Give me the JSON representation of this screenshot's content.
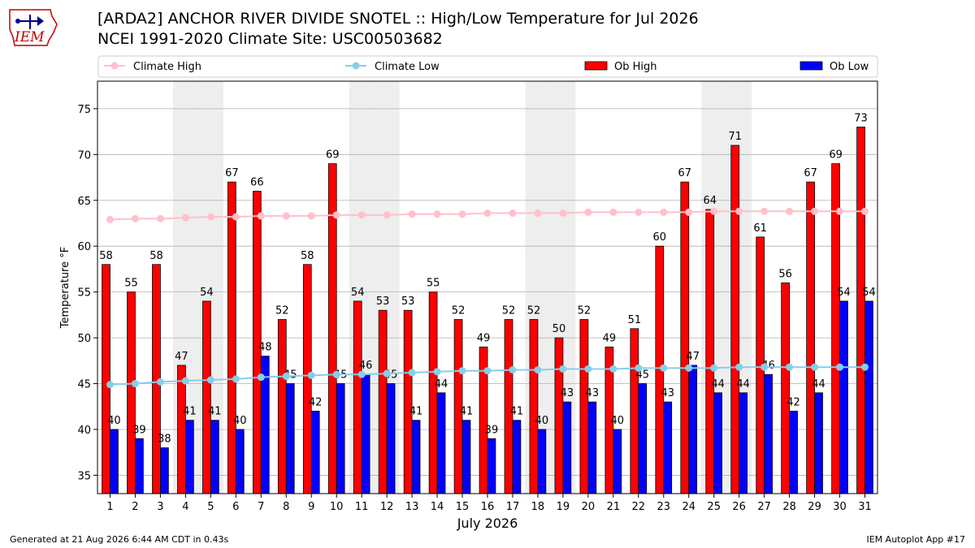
{
  "header": {
    "title_line1": "[ARDA2] ANCHOR RIVER DIVIDE SNOTEL :: High/Low Temperature for Jul 2026",
    "title_line2": "NCEI 1991-2020 Climate Site: USC00503682"
  },
  "logo": {
    "text": "IEM",
    "icon": "iem-state-logo"
  },
  "footer": {
    "left": "Generated at 21 Aug 2026 6:44 AM CDT in 0.43s",
    "right": "IEM Autoplot App #17"
  },
  "colors": {
    "ob_high": "#ff0000",
    "ob_low": "#0000ff",
    "climate_high": "#ffc0cb",
    "climate_low": "#87ceeb",
    "weekend_shade": "#eeeeee",
    "grid": "#b0b0b0"
  },
  "chart_data": {
    "type": "bar",
    "xlabel": "July 2026",
    "ylabel": "Temperature °F",
    "ylim": [
      33,
      78
    ],
    "yticks": [
      35,
      40,
      45,
      50,
      55,
      60,
      65,
      70,
      75
    ],
    "grid": "horizontal",
    "legend_position": "top",
    "categories": [
      "1",
      "2",
      "3",
      "4",
      "5",
      "6",
      "7",
      "8",
      "9",
      "10",
      "11",
      "12",
      "13",
      "14",
      "15",
      "16",
      "17",
      "18",
      "19",
      "20",
      "21",
      "22",
      "23",
      "24",
      "25",
      "26",
      "27",
      "28",
      "29",
      "30",
      "31"
    ],
    "weekend_days": [
      4,
      5,
      11,
      12,
      18,
      19,
      25,
      26
    ],
    "series": [
      {
        "name": "Climate High",
        "kind": "line",
        "values": [
          62.9,
          63.0,
          63.0,
          63.1,
          63.2,
          63.2,
          63.3,
          63.3,
          63.3,
          63.4,
          63.4,
          63.4,
          63.5,
          63.5,
          63.5,
          63.6,
          63.6,
          63.6,
          63.6,
          63.7,
          63.7,
          63.7,
          63.7,
          63.7,
          63.8,
          63.8,
          63.8,
          63.8,
          63.8,
          63.8,
          63.8
        ]
      },
      {
        "name": "Climate Low",
        "kind": "line",
        "values": [
          44.9,
          45.0,
          45.2,
          45.3,
          45.4,
          45.5,
          45.7,
          45.8,
          45.9,
          46.0,
          46.0,
          46.1,
          46.2,
          46.3,
          46.4,
          46.4,
          46.5,
          46.5,
          46.6,
          46.6,
          46.6,
          46.7,
          46.7,
          46.7,
          46.7,
          46.8,
          46.8,
          46.8,
          46.8,
          46.8,
          46.8
        ]
      },
      {
        "name": "Ob High",
        "kind": "bar",
        "values": [
          58,
          55,
          58,
          47,
          54,
          67,
          66,
          52,
          58,
          69,
          54,
          53,
          53,
          55,
          52,
          49,
          52,
          52,
          50,
          52,
          49,
          51,
          60,
          67,
          64,
          71,
          61,
          56,
          67,
          69,
          73
        ]
      },
      {
        "name": "Ob Low",
        "kind": "bar",
        "values": [
          40,
          39,
          38,
          41,
          41,
          40,
          48,
          45,
          42,
          45,
          46,
          45,
          41,
          44,
          41,
          39,
          41,
          40,
          43,
          43,
          40,
          45,
          43,
          47,
          44,
          44,
          46,
          42,
          44,
          54,
          54
        ]
      }
    ]
  }
}
